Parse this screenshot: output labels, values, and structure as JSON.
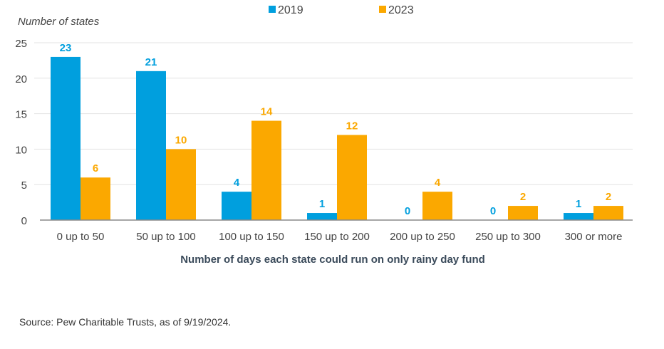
{
  "chart_data": {
    "type": "bar",
    "ylabel": "Number of states",
    "xlabel": "Number of days each state could run on only rainy day fund",
    "categories": [
      "0 up to 50",
      "50 up to 100",
      "100 up to 150",
      "150 up to 200",
      "200 up to 250",
      "250 up to 300",
      "300 or more"
    ],
    "series": [
      {
        "name": "2019",
        "color": "#009fde",
        "values": [
          23,
          21,
          4,
          1,
          0,
          0,
          1
        ]
      },
      {
        "name": "2023",
        "color": "#fba800",
        "values": [
          6,
          10,
          14,
          12,
          4,
          2,
          2
        ]
      }
    ],
    "ylim": [
      0,
      25
    ],
    "yticks": [
      0,
      5,
      10,
      15,
      20,
      25
    ],
    "grid": true,
    "legend": "top-center"
  },
  "source": "Source: Pew Charitable Trusts, as of 9/19/2024."
}
